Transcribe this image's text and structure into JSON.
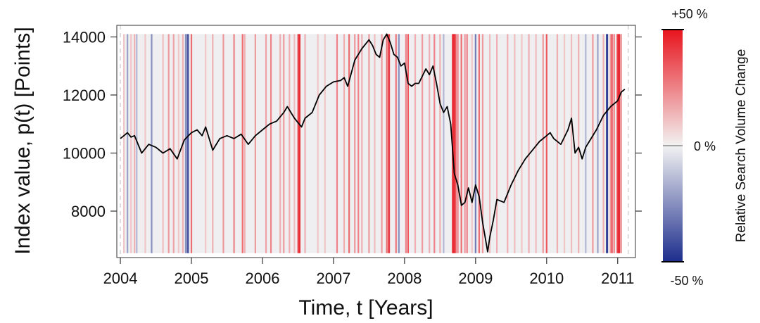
{
  "chart_data": {
    "type": "line",
    "xlabel": "Time, t [Years]",
    "ylabel": "Index value, p(t) [Points]",
    "xlim": [
      2003.95,
      2011.25
    ],
    "ylim": [
      6400,
      14400
    ],
    "x_ticks": [
      2004,
      2005,
      2006,
      2007,
      2008,
      2009,
      2010,
      2011
    ],
    "x_tick_labels": [
      "2004",
      "2005",
      "2006",
      "2007",
      "2008",
      "2009",
      "2010",
      "2011"
    ],
    "y_ticks": [
      8000,
      10000,
      12000,
      14000
    ],
    "y_tick_labels": [
      "8000",
      "10000",
      "12000",
      "14000"
    ],
    "grid": false,
    "series": [
      {
        "color": "#000000",
        "x": [
          2004.0,
          2004.05,
          2004.1,
          2004.15,
          2004.2,
          2004.3,
          2004.4,
          2004.5,
          2004.6,
          2004.7,
          2004.8,
          2004.9,
          2005.0,
          2005.08,
          2005.15,
          2005.2,
          2005.3,
          2005.4,
          2005.5,
          2005.6,
          2005.7,
          2005.8,
          2005.9,
          2006.0,
          2006.1,
          2006.2,
          2006.3,
          2006.35,
          2006.45,
          2006.55,
          2006.6,
          2006.7,
          2006.8,
          2006.9,
          2007.0,
          2007.1,
          2007.15,
          2007.2,
          2007.3,
          2007.4,
          2007.5,
          2007.55,
          2007.6,
          2007.65,
          2007.7,
          2007.75,
          2007.8,
          2007.85,
          2007.9,
          2007.95,
          2008.0,
          2008.05,
          2008.1,
          2008.15,
          2008.2,
          2008.3,
          2008.35,
          2008.4,
          2008.45,
          2008.5,
          2008.55,
          2008.6,
          2008.65,
          2008.7,
          2008.75,
          2008.8,
          2008.85,
          2008.9,
          2008.95,
          2009.0,
          2009.05,
          2009.1,
          2009.17,
          2009.2,
          2009.25,
          2009.3,
          2009.4,
          2009.5,
          2009.6,
          2009.7,
          2009.8,
          2009.9,
          2010.0,
          2010.05,
          2010.1,
          2010.2,
          2010.3,
          2010.35,
          2010.4,
          2010.45,
          2010.5,
          2010.55,
          2010.6,
          2010.7,
          2010.8,
          2010.9,
          2011.0,
          2011.05,
          2011.1
        ],
        "values": [
          10500,
          10600,
          10700,
          10550,
          10600,
          10000,
          10300,
          10200,
          10000,
          10150,
          9800,
          10450,
          10700,
          10800,
          10600,
          10900,
          10100,
          10500,
          10600,
          10500,
          10650,
          10300,
          10600,
          10800,
          11000,
          11100,
          11400,
          11600,
          11200,
          10900,
          11200,
          11400,
          12000,
          12300,
          12450,
          12500,
          12600,
          12300,
          13200,
          13600,
          13900,
          13700,
          13400,
          13300,
          13900,
          14100,
          13800,
          13400,
          13300,
          13000,
          13100,
          12400,
          12300,
          12400,
          12400,
          12900,
          12700,
          13000,
          12400,
          11700,
          11400,
          11600,
          11000,
          9300,
          8900,
          8200,
          8300,
          8800,
          8300,
          8900,
          8500,
          7600,
          6600,
          7100,
          7700,
          8400,
          8300,
          8900,
          9400,
          9800,
          10100,
          10400,
          10600,
          10700,
          10500,
          10300,
          10800,
          11200,
          10000,
          10200,
          9800,
          10200,
          10400,
          10800,
          11300,
          11600,
          11800,
          12100,
          12200
        ]
      }
    ],
    "heatmap_stripes": {
      "description_values": "relative search volume change per week, percent",
      "x": [
        2004.05,
        2004.1,
        2004.15,
        2004.2,
        2004.23,
        2004.35,
        2004.44,
        2004.6,
        2004.68,
        2004.75,
        2004.82,
        2004.88,
        2004.92,
        2004.95,
        2005.0,
        2005.2,
        2005.3,
        2005.45,
        2005.6,
        2005.72,
        2005.75,
        2005.9,
        2006.05,
        2006.12,
        2006.25,
        2006.3,
        2006.38,
        2006.45,
        2006.5,
        2006.52,
        2006.6,
        2006.78,
        2006.88,
        2007.05,
        2007.15,
        2007.22,
        2007.3,
        2007.35,
        2007.4,
        2007.5,
        2007.58,
        2007.68,
        2007.75,
        2007.78,
        2007.88,
        2007.92,
        2008.02,
        2008.05,
        2008.15,
        2008.25,
        2008.35,
        2008.42,
        2008.5,
        2008.55,
        2008.68,
        2008.7,
        2008.72,
        2008.75,
        2008.8,
        2008.85,
        2008.88,
        2008.95,
        2009.0,
        2009.05,
        2009.1,
        2009.2,
        2009.3,
        2009.45,
        2009.55,
        2009.65,
        2009.75,
        2009.85,
        2009.95,
        2010.0,
        2010.15,
        2010.25,
        2010.35,
        2010.45,
        2010.55,
        2010.65,
        2010.72,
        2010.8,
        2010.85,
        2010.9,
        2010.92,
        2010.95,
        2011.0,
        2011.02,
        2011.05
      ],
      "values": [
        10,
        -20,
        10,
        15,
        -15,
        10,
        -25,
        12,
        20,
        18,
        10,
        15,
        -25,
        -40,
        30,
        10,
        15,
        20,
        25,
        30,
        15,
        20,
        18,
        25,
        15,
        20,
        15,
        12,
        28,
        45,
        15,
        10,
        10,
        25,
        15,
        30,
        20,
        25,
        15,
        20,
        12,
        20,
        30,
        40,
        28,
        -25,
        25,
        35,
        15,
        20,
        15,
        25,
        15,
        -15,
        40,
        45,
        35,
        25,
        30,
        20,
        25,
        10,
        -30,
        30,
        20,
        12,
        15,
        15,
        12,
        10,
        15,
        12,
        20,
        35,
        15,
        10,
        12,
        15,
        -15,
        20,
        -20,
        15,
        -45,
        20,
        35,
        25,
        40,
        45,
        20
      ]
    },
    "colorbar": {
      "title": "Relative Search Volume Change",
      "top_label": "+50 %",
      "mid_label": "0 %",
      "bottom_label": "-50 %",
      "range": [
        -50,
        50
      ],
      "color_high": "#e8141d",
      "color_mid": "#f2f2f2",
      "color_low": "#1c2d8c"
    }
  }
}
